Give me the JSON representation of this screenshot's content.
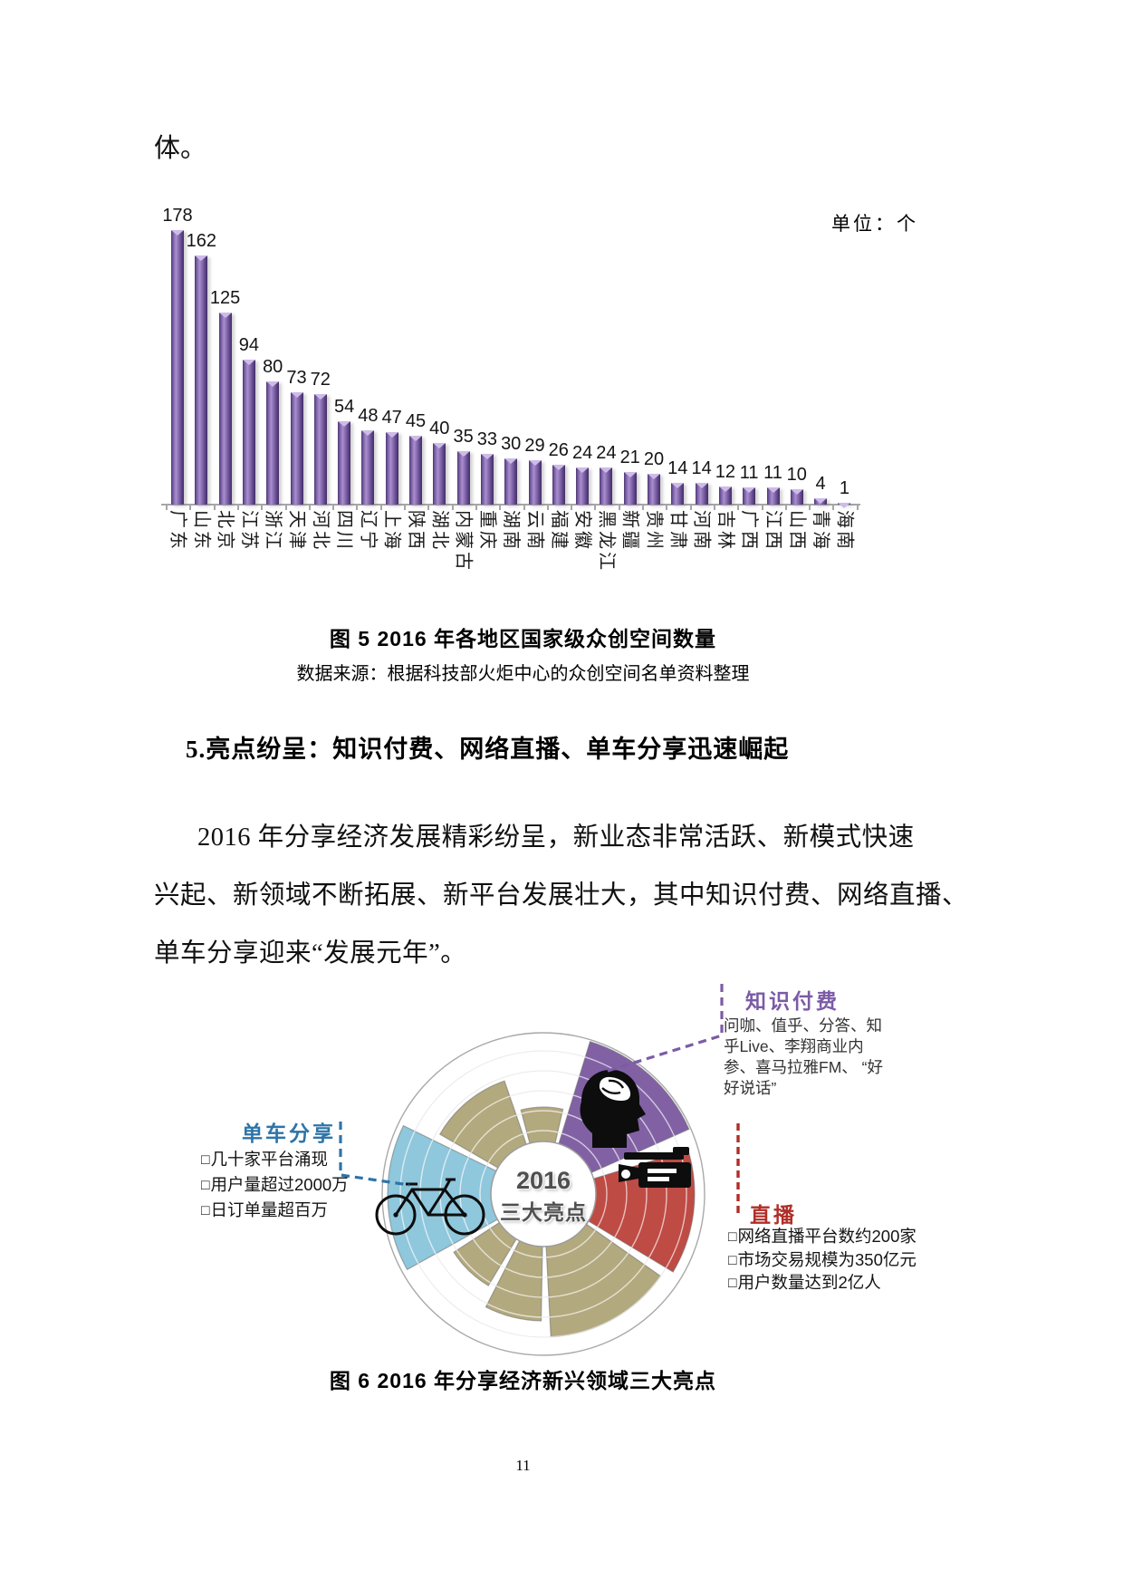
{
  "page": {
    "top_text": "体。",
    "page_number": "11"
  },
  "bar_chart": {
    "unit_label": "单位：个",
    "caption": "图 5 2016 年各地区国家级众创空间数量",
    "source": "数据来源：根据科技部火炬中心的众创空间名单资料整理",
    "bar_color": "#8064A2"
  },
  "chart_data": {
    "type": "bar",
    "title": "图 5 2016 年各地区国家级众创空间数量",
    "unit": "单位：个",
    "categories": [
      "广东",
      "山东",
      "北京",
      "江苏",
      "浙江",
      "天津",
      "河北",
      "四川",
      "辽宁",
      "上海",
      "陕西",
      "湖北",
      "内蒙古",
      "重庆",
      "湖南",
      "云南",
      "福建",
      "安徽",
      "黑龙江",
      "新疆",
      "贵州",
      "甘肃",
      "河南",
      "吉林",
      "广西",
      "江西",
      "山西",
      "青海",
      "海南"
    ],
    "values": [
      178,
      162,
      125,
      94,
      80,
      73,
      72,
      54,
      48,
      47,
      45,
      40,
      35,
      33,
      30,
      29,
      26,
      24,
      24,
      21,
      20,
      14,
      14,
      12,
      11,
      11,
      10,
      4,
      1
    ],
    "xlabel": "",
    "ylabel": "",
    "ylim": [
      0,
      190
    ],
    "grid": false,
    "legend": false,
    "data_labels": true
  },
  "section": {
    "heading": "5.亮点纷呈：知识付费、网络直播、单车分享迅速崛起",
    "paragraph_lines": [
      "2016 年分享经济发展精彩纷呈，新业态非常活跃、新模式快速",
      "兴起、新领域不断拓展、新平台发展壮大，其中知识付费、网络直播、",
      "单车分享迎来“发展元年”。"
    ]
  },
  "diagram": {
    "center_line1": "2016",
    "center_line2": "三大亮点",
    "caption": "图 6 2016 年分享经济新兴领域三大亮点",
    "colors": {
      "knowledge_sector": "#8161A4",
      "live_sector": "#BF4B45",
      "bike_sector": "#8FC7DC",
      "other_sector": "#B3A97E"
    },
    "callouts": {
      "knowledge": {
        "title": "知识付费",
        "color": "#7B5BA6",
        "description": "问咖、值乎、分答、知乎Live、李翔商业内参、喜马拉雅FM、 “好好说话”"
      },
      "bike": {
        "title": "单车分享",
        "color": "#2E74A8",
        "bullets": [
          "几十家平台涌现",
          "用户量超过2000万",
          "日订单量超百万"
        ]
      },
      "live": {
        "title": "直播",
        "color": "#B02E27",
        "bullets": [
          "网络直播平台数约200家",
          "市场交易规模为350亿元",
          "用户数量达到2亿人"
        ]
      }
    }
  }
}
